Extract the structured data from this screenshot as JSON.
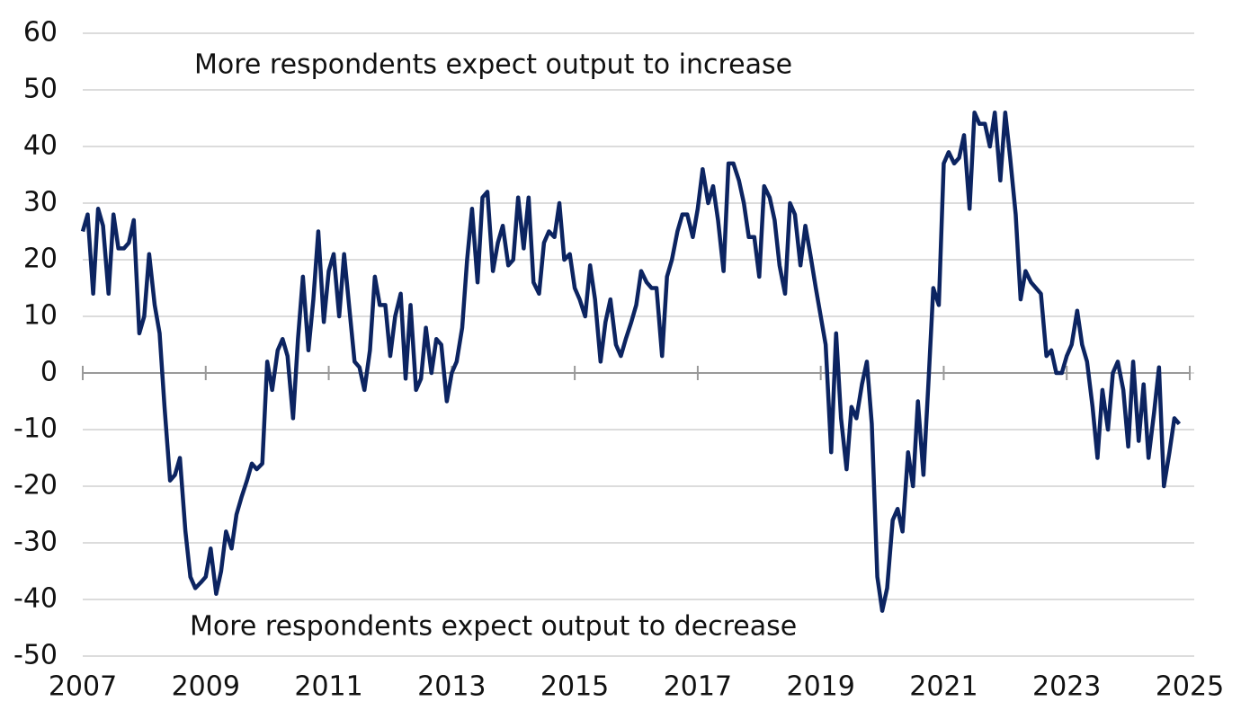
{
  "chart_data": {
    "type": "line",
    "annotations": [
      "More respondents expect output to increase",
      "More respondents expect output to decrease"
    ],
    "color": "#0c2461",
    "x": [
      2007,
      2007.08,
      2007.17,
      2007.25,
      2007.33,
      2007.42,
      2007.5,
      2007.58,
      2007.67,
      2007.75,
      2007.83,
      2007.92,
      2008,
      2008.08,
      2008.17,
      2008.25,
      2008.33,
      2008.42,
      2008.5,
      2008.58,
      2008.67,
      2008.75,
      2008.83,
      2008.92,
      2009,
      2009.08,
      2009.17,
      2009.25,
      2009.33,
      2009.42,
      2009.5,
      2009.58,
      2009.67,
      2009.75,
      2009.83,
      2009.92,
      2010,
      2010.08,
      2010.17,
      2010.25,
      2010.33,
      2010.42,
      2010.5,
      2010.58,
      2010.67,
      2010.75,
      2010.83,
      2010.92,
      2011,
      2011.08,
      2011.17,
      2011.25,
      2011.33,
      2011.42,
      2011.5,
      2011.58,
      2011.67,
      2011.75,
      2011.83,
      2011.92,
      2012,
      2012.08,
      2012.17,
      2012.25,
      2012.33,
      2012.42,
      2012.5,
      2012.58,
      2012.67,
      2012.75,
      2012.83,
      2012.92,
      2013,
      2013.08,
      2013.17,
      2013.25,
      2013.33,
      2013.42,
      2013.5,
      2013.58,
      2013.67,
      2013.75,
      2013.83,
      2013.92,
      2014,
      2014.08,
      2014.17,
      2014.25,
      2014.33,
      2014.42,
      2014.5,
      2014.58,
      2014.67,
      2014.75,
      2014.83,
      2014.92,
      2015,
      2015.08,
      2015.17,
      2015.25,
      2015.33,
      2015.42,
      2015.5,
      2015.58,
      2015.67,
      2015.75,
      2015.83,
      2015.92,
      2016,
      2016.08,
      2016.17,
      2016.25,
      2016.33,
      2016.42,
      2016.5,
      2016.58,
      2016.67,
      2016.75,
      2016.83,
      2016.92,
      2017,
      2017.08,
      2017.17,
      2017.25,
      2017.33,
      2017.42,
      2017.5,
      2017.58,
      2017.67,
      2017.75,
      2017.83,
      2017.92,
      2018,
      2018.08,
      2018.17,
      2018.25,
      2018.33,
      2018.42,
      2018.5,
      2018.58,
      2018.67,
      2018.75,
      2018.83,
      2018.92,
      2019,
      2019.08,
      2019.17,
      2019.25,
      2019.33,
      2019.42,
      2019.5,
      2019.58,
      2019.67,
      2019.75,
      2019.83,
      2019.92,
      2020,
      2020.08,
      2020.17,
      2020.25,
      2020.33,
      2020.42,
      2020.5,
      2020.58,
      2020.67,
      2020.75,
      2020.83,
      2020.92,
      2021,
      2021.08,
      2021.17,
      2021.25,
      2021.33,
      2021.42,
      2021.5,
      2021.58,
      2021.67,
      2021.75,
      2021.83,
      2021.92,
      2022,
      2022.08,
      2022.17,
      2022.25,
      2022.33,
      2022.42,
      2022.5,
      2022.58,
      2022.67,
      2022.75,
      2022.83,
      2022.92,
      2023,
      2023.08,
      2023.17,
      2023.25,
      2023.33,
      2023.42,
      2023.5,
      2023.58,
      2023.67,
      2023.75,
      2023.83,
      2023.92,
      2024,
      2024.08,
      2024.17,
      2024.25,
      2024.33,
      2024.42,
      2024.5,
      2024.58,
      2024.67,
      2024.75,
      2024.83
    ],
    "values": [
      25,
      28,
      14,
      29,
      26,
      14,
      28,
      22,
      22,
      23,
      27,
      7,
      10,
      21,
      12,
      7,
      -6,
      -19,
      -18,
      -15,
      -28,
      -36,
      -38,
      -37,
      -36,
      -31,
      -39,
      -35,
      -28,
      -31,
      -25,
      -22,
      -19,
      -16,
      -17,
      -16,
      2,
      -3,
      4,
      6,
      3,
      -8,
      6,
      17,
      4,
      13,
      25,
      9,
      18,
      21,
      10,
      21,
      12,
      2,
      1,
      -3,
      4,
      17,
      12,
      12,
      3,
      10,
      14,
      -1,
      12,
      -3,
      -1,
      8,
      0,
      6,
      5,
      -5,
      0,
      2,
      8,
      20,
      29,
      16,
      31,
      32,
      18,
      23,
      26,
      19,
      20,
      31,
      22,
      31,
      16,
      14,
      23,
      25,
      24,
      30,
      20,
      21,
      15,
      13,
      10,
      19,
      13,
      2,
      9,
      13,
      5,
      3,
      6,
      9,
      12,
      18,
      16,
      15,
      15,
      3,
      17,
      20,
      25,
      28,
      28,
      24,
      29,
      36,
      30,
      33,
      27,
      18,
      37,
      37,
      34,
      30,
      24,
      24,
      17,
      33,
      31,
      27,
      19,
      14,
      30,
      28,
      19,
      26,
      21,
      15,
      10,
      5,
      -14,
      7,
      -8,
      -17,
      -6,
      -8,
      -2,
      2,
      -9,
      -36,
      -42,
      -38,
      -26,
      -24,
      -28,
      -14,
      -20,
      -5,
      -18,
      -2,
      15,
      12,
      37,
      39,
      37,
      38,
      42,
      29,
      46,
      44,
      44,
      40,
      46,
      34,
      46,
      38,
      28,
      13,
      18,
      16,
      15,
      14,
      3,
      4,
      0,
      0,
      3,
      5,
      11,
      5,
      2,
      -6,
      -15,
      -3,
      -10,
      0,
      2,
      -3,
      -13,
      2,
      -12,
      -2,
      -15,
      -7,
      1,
      -20,
      -14,
      -8,
      -9
    ],
    "xlim": [
      2007,
      2025
    ],
    "xticks": [
      2007,
      2009,
      2011,
      2013,
      2015,
      2017,
      2019,
      2021,
      2023,
      2025
    ],
    "ylim": [
      -50,
      60
    ],
    "yticks": [
      -50,
      -40,
      -30,
      -20,
      -10,
      0,
      10,
      20,
      30,
      40,
      50,
      60
    ],
    "grid": true
  }
}
